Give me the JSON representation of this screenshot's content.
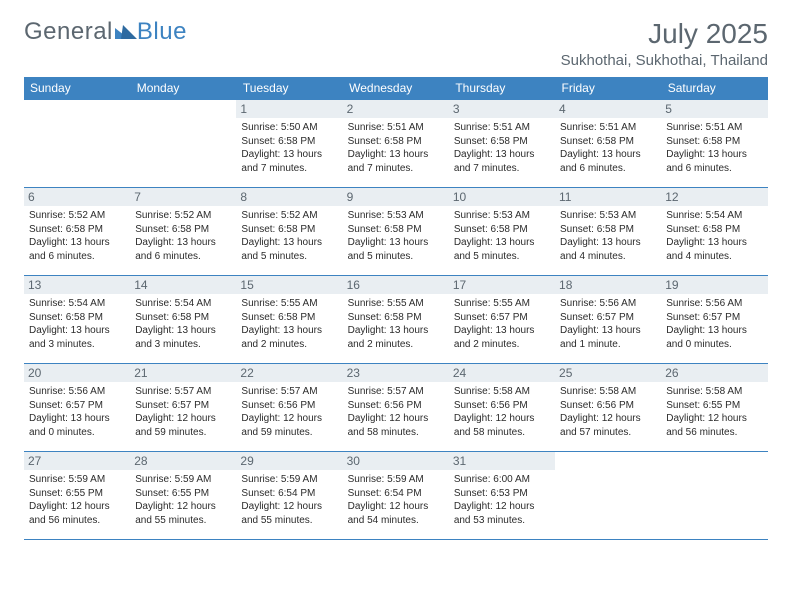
{
  "brand": {
    "part1": "General",
    "part2": "Blue"
  },
  "header": {
    "title": "July 2025",
    "location": "Sukhothai, Sukhothai, Thailand"
  },
  "colors": {
    "accent": "#3d83c1",
    "headerText": "#5c6770",
    "dayBg": "#e9eef2"
  },
  "dayNames": [
    "Sunday",
    "Monday",
    "Tuesday",
    "Wednesday",
    "Thursday",
    "Friday",
    "Saturday"
  ],
  "labels": {
    "sunrise": "Sunrise:",
    "sunset": "Sunset:",
    "daylight": "Daylight:"
  },
  "startOffset": 2,
  "days": [
    {
      "n": "1",
      "rise": "5:50 AM",
      "set": "6:58 PM",
      "dl": "13 hours and 7 minutes."
    },
    {
      "n": "2",
      "rise": "5:51 AM",
      "set": "6:58 PM",
      "dl": "13 hours and 7 minutes."
    },
    {
      "n": "3",
      "rise": "5:51 AM",
      "set": "6:58 PM",
      "dl": "13 hours and 7 minutes."
    },
    {
      "n": "4",
      "rise": "5:51 AM",
      "set": "6:58 PM",
      "dl": "13 hours and 6 minutes."
    },
    {
      "n": "5",
      "rise": "5:51 AM",
      "set": "6:58 PM",
      "dl": "13 hours and 6 minutes."
    },
    {
      "n": "6",
      "rise": "5:52 AM",
      "set": "6:58 PM",
      "dl": "13 hours and 6 minutes."
    },
    {
      "n": "7",
      "rise": "5:52 AM",
      "set": "6:58 PM",
      "dl": "13 hours and 6 minutes."
    },
    {
      "n": "8",
      "rise": "5:52 AM",
      "set": "6:58 PM",
      "dl": "13 hours and 5 minutes."
    },
    {
      "n": "9",
      "rise": "5:53 AM",
      "set": "6:58 PM",
      "dl": "13 hours and 5 minutes."
    },
    {
      "n": "10",
      "rise": "5:53 AM",
      "set": "6:58 PM",
      "dl": "13 hours and 5 minutes."
    },
    {
      "n": "11",
      "rise": "5:53 AM",
      "set": "6:58 PM",
      "dl": "13 hours and 4 minutes."
    },
    {
      "n": "12",
      "rise": "5:54 AM",
      "set": "6:58 PM",
      "dl": "13 hours and 4 minutes."
    },
    {
      "n": "13",
      "rise": "5:54 AM",
      "set": "6:58 PM",
      "dl": "13 hours and 3 minutes."
    },
    {
      "n": "14",
      "rise": "5:54 AM",
      "set": "6:58 PM",
      "dl": "13 hours and 3 minutes."
    },
    {
      "n": "15",
      "rise": "5:55 AM",
      "set": "6:58 PM",
      "dl": "13 hours and 2 minutes."
    },
    {
      "n": "16",
      "rise": "5:55 AM",
      "set": "6:58 PM",
      "dl": "13 hours and 2 minutes."
    },
    {
      "n": "17",
      "rise": "5:55 AM",
      "set": "6:57 PM",
      "dl": "13 hours and 2 minutes."
    },
    {
      "n": "18",
      "rise": "5:56 AM",
      "set": "6:57 PM",
      "dl": "13 hours and 1 minute."
    },
    {
      "n": "19",
      "rise": "5:56 AM",
      "set": "6:57 PM",
      "dl": "13 hours and 0 minutes."
    },
    {
      "n": "20",
      "rise": "5:56 AM",
      "set": "6:57 PM",
      "dl": "13 hours and 0 minutes."
    },
    {
      "n": "21",
      "rise": "5:57 AM",
      "set": "6:57 PM",
      "dl": "12 hours and 59 minutes."
    },
    {
      "n": "22",
      "rise": "5:57 AM",
      "set": "6:56 PM",
      "dl": "12 hours and 59 minutes."
    },
    {
      "n": "23",
      "rise": "5:57 AM",
      "set": "6:56 PM",
      "dl": "12 hours and 58 minutes."
    },
    {
      "n": "24",
      "rise": "5:58 AM",
      "set": "6:56 PM",
      "dl": "12 hours and 58 minutes."
    },
    {
      "n": "25",
      "rise": "5:58 AM",
      "set": "6:56 PM",
      "dl": "12 hours and 57 minutes."
    },
    {
      "n": "26",
      "rise": "5:58 AM",
      "set": "6:55 PM",
      "dl": "12 hours and 56 minutes."
    },
    {
      "n": "27",
      "rise": "5:59 AM",
      "set": "6:55 PM",
      "dl": "12 hours and 56 minutes."
    },
    {
      "n": "28",
      "rise": "5:59 AM",
      "set": "6:55 PM",
      "dl": "12 hours and 55 minutes."
    },
    {
      "n": "29",
      "rise": "5:59 AM",
      "set": "6:54 PM",
      "dl": "12 hours and 55 minutes."
    },
    {
      "n": "30",
      "rise": "5:59 AM",
      "set": "6:54 PM",
      "dl": "12 hours and 54 minutes."
    },
    {
      "n": "31",
      "rise": "6:00 AM",
      "set": "6:53 PM",
      "dl": "12 hours and 53 minutes."
    }
  ]
}
